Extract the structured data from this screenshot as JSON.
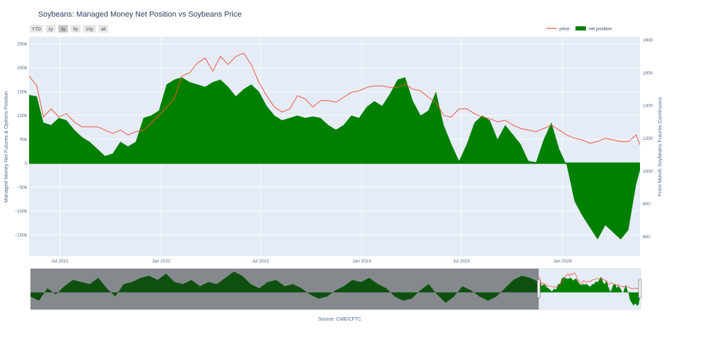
{
  "chart_data": {
    "type": "area+line",
    "title": "Soybeans: Managed Money Net Position vs Soybeans Price",
    "source": "Source: CME/CFTC",
    "y_left_label": "Managed Money Net Futures & Options Position",
    "y_right_label": "Front Month Soybeans Futures Continuous",
    "y_left_range": [
      -195000,
      265000
    ],
    "y_right_range": [
      480,
      1820
    ],
    "x_range": [
      "2021-05-06",
      "2024-05-21"
    ],
    "x_ticks": [
      {
        "date": "2021-07-01",
        "label": "Jul 2021"
      },
      {
        "date": "2022-01-01",
        "label": "Jan 2022"
      },
      {
        "date": "2022-07-01",
        "label": "Jul 2022"
      },
      {
        "date": "2023-01-01",
        "label": "Jan 2023"
      },
      {
        "date": "2023-07-01",
        "label": "Jul 2023"
      },
      {
        "date": "2024-01-01",
        "label": "Jan 2024"
      }
    ],
    "y_left_ticks": [
      {
        "v": 250000,
        "label": "250k"
      },
      {
        "v": 200000,
        "label": "200k"
      },
      {
        "v": 150000,
        "label": "150k"
      },
      {
        "v": 100000,
        "label": "100k"
      },
      {
        "v": 50000,
        "label": "50k"
      },
      {
        "v": 0,
        "label": "0"
      },
      {
        "v": -50000,
        "label": "−50k"
      },
      {
        "v": -100000,
        "label": "−100k"
      },
      {
        "v": -150000,
        "label": "−150k"
      }
    ],
    "y_right_ticks": [
      1800,
      1600,
      1400,
      1200,
      1000,
      800,
      600
    ],
    "legend": {
      "placement": "top-right",
      "price_label": "price",
      "net_label": "net position"
    },
    "colors": {
      "price": "#ef553b",
      "net": "#008000",
      "plot_bg": "#e5ecf6",
      "grid": "#ffffff"
    },
    "net_position": {
      "x": [
        "2021-05-06",
        "2021-05-20",
        "2021-06-01",
        "2021-06-15",
        "2021-06-29",
        "2021-07-13",
        "2021-07-27",
        "2021-08-10",
        "2021-08-24",
        "2021-09-07",
        "2021-09-21",
        "2021-10-05",
        "2021-10-19",
        "2021-11-02",
        "2021-11-16",
        "2021-11-30",
        "2021-12-14",
        "2021-12-28",
        "2022-01-11",
        "2022-01-25",
        "2022-02-08",
        "2022-02-22",
        "2022-03-08",
        "2022-03-22",
        "2022-04-05",
        "2022-04-19",
        "2022-05-03",
        "2022-05-17",
        "2022-05-31",
        "2022-06-14",
        "2022-06-28",
        "2022-07-12",
        "2022-07-26",
        "2022-08-09",
        "2022-08-23",
        "2022-09-06",
        "2022-09-20",
        "2022-10-04",
        "2022-10-18",
        "2022-11-01",
        "2022-11-15",
        "2022-11-29",
        "2022-12-13",
        "2022-12-27",
        "2023-01-10",
        "2023-01-24",
        "2023-02-07",
        "2023-02-21",
        "2023-03-07",
        "2023-03-21",
        "2023-04-04",
        "2023-04-18",
        "2023-05-02",
        "2023-05-16",
        "2023-05-30",
        "2023-06-13",
        "2023-06-27",
        "2023-07-11",
        "2023-07-25",
        "2023-08-08",
        "2023-08-22",
        "2023-09-05",
        "2023-09-19",
        "2023-10-03",
        "2023-10-17",
        "2023-10-31",
        "2023-11-14",
        "2023-11-28",
        "2023-12-12",
        "2023-12-26",
        "2024-01-09",
        "2024-01-23",
        "2024-02-06",
        "2024-02-20",
        "2024-03-05",
        "2024-03-19",
        "2024-04-02",
        "2024-04-16",
        "2024-04-30",
        "2024-05-14",
        "2024-05-21"
      ],
      "y": [
        143000,
        140000,
        85000,
        80000,
        95000,
        90000,
        70000,
        55000,
        45000,
        30000,
        15000,
        20000,
        45000,
        35000,
        45000,
        95000,
        100000,
        110000,
        165000,
        175000,
        180000,
        170000,
        165000,
        160000,
        170000,
        175000,
        160000,
        140000,
        155000,
        165000,
        150000,
        120000,
        100000,
        90000,
        95000,
        100000,
        95000,
        98000,
        95000,
        80000,
        70000,
        80000,
        100000,
        95000,
        118000,
        130000,
        120000,
        145000,
        175000,
        180000,
        130000,
        100000,
        110000,
        150000,
        80000,
        40000,
        5000,
        40000,
        85000,
        100000,
        90000,
        50000,
        80000,
        60000,
        40000,
        5000,
        2000,
        50000,
        85000,
        30000,
        -5000,
        -80000,
        -110000,
        -135000,
        -160000,
        -130000,
        -145000,
        -160000,
        -140000,
        -45000,
        -15000
      ]
    },
    "price": {
      "x": [
        "2021-05-06",
        "2021-05-20",
        "2021-06-01",
        "2021-06-15",
        "2021-06-29",
        "2021-07-13",
        "2021-07-27",
        "2021-08-10",
        "2021-08-24",
        "2021-09-07",
        "2021-09-21",
        "2021-10-05",
        "2021-10-19",
        "2021-11-02",
        "2021-11-16",
        "2021-11-30",
        "2021-12-14",
        "2021-12-28",
        "2022-01-11",
        "2022-01-25",
        "2022-02-08",
        "2022-02-22",
        "2022-03-08",
        "2022-03-22",
        "2022-04-05",
        "2022-04-19",
        "2022-05-03",
        "2022-05-17",
        "2022-05-31",
        "2022-06-14",
        "2022-06-28",
        "2022-07-12",
        "2022-07-26",
        "2022-08-09",
        "2022-08-23",
        "2022-09-06",
        "2022-09-20",
        "2022-10-04",
        "2022-10-18",
        "2022-11-01",
        "2022-11-15",
        "2022-11-29",
        "2022-12-13",
        "2022-12-27",
        "2023-01-10",
        "2023-01-24",
        "2023-02-07",
        "2023-02-21",
        "2023-03-07",
        "2023-03-21",
        "2023-04-04",
        "2023-04-18",
        "2023-05-02",
        "2023-05-16",
        "2023-05-30",
        "2023-06-13",
        "2023-06-27",
        "2023-07-11",
        "2023-07-25",
        "2023-08-08",
        "2023-08-22",
        "2023-09-05",
        "2023-09-19",
        "2023-10-03",
        "2023-10-17",
        "2023-10-31",
        "2023-11-14",
        "2023-11-28",
        "2023-12-12",
        "2023-12-26",
        "2024-01-09",
        "2024-01-23",
        "2024-02-06",
        "2024-02-20",
        "2024-03-05",
        "2024-03-19",
        "2024-04-02",
        "2024-04-16",
        "2024-04-30",
        "2024-05-14",
        "2024-05-21"
      ],
      "y": [
        1580,
        1520,
        1330,
        1380,
        1330,
        1350,
        1300,
        1270,
        1270,
        1270,
        1250,
        1230,
        1250,
        1220,
        1240,
        1250,
        1290,
        1340,
        1390,
        1440,
        1580,
        1600,
        1660,
        1690,
        1610,
        1700,
        1650,
        1700,
        1720,
        1650,
        1540,
        1460,
        1390,
        1360,
        1380,
        1460,
        1440,
        1390,
        1430,
        1430,
        1420,
        1450,
        1480,
        1490,
        1510,
        1520,
        1520,
        1510,
        1510,
        1530,
        1500,
        1490,
        1450,
        1420,
        1340,
        1330,
        1380,
        1380,
        1350,
        1330,
        1320,
        1300,
        1310,
        1280,
        1260,
        1250,
        1240,
        1260,
        1280,
        1250,
        1220,
        1200,
        1190,
        1170,
        1180,
        1200,
        1190,
        1180,
        1180,
        1220,
        1160
      ]
    }
  }
}
